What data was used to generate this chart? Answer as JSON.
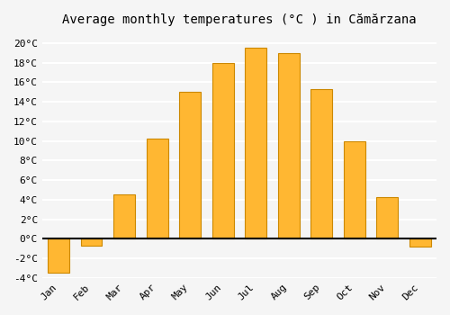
{
  "title": "Average monthly temperatures (°C ) in Cămărzana",
  "months": [
    "Jan",
    "Feb",
    "Mar",
    "Apr",
    "May",
    "Jun",
    "Jul",
    "Aug",
    "Sep",
    "Oct",
    "Nov",
    "Dec"
  ],
  "values": [
    -3.5,
    -0.7,
    4.5,
    10.2,
    15.0,
    18.0,
    19.5,
    19.0,
    15.3,
    10.0,
    4.3,
    -0.8
  ],
  "bar_color_positive": "#FFA500",
  "bar_color_negative": "#FFA500",
  "bar_edge_color": "#CC7700",
  "ylim": [
    -4,
    21
  ],
  "yticks": [
    -4,
    -2,
    0,
    2,
    4,
    6,
    8,
    10,
    12,
    14,
    16,
    18,
    20
  ],
  "ytick_labels": [
    "-4°C",
    "-2°C",
    "0°C",
    "2°C",
    "4°C",
    "6°C",
    "8°C",
    "10°C",
    "12°C",
    "14°C",
    "16°C",
    "18°C",
    "20°C"
  ],
  "background_color": "#f5f5f5",
  "grid_color": "#ffffff",
  "title_fontsize": 10,
  "tick_fontsize": 8
}
